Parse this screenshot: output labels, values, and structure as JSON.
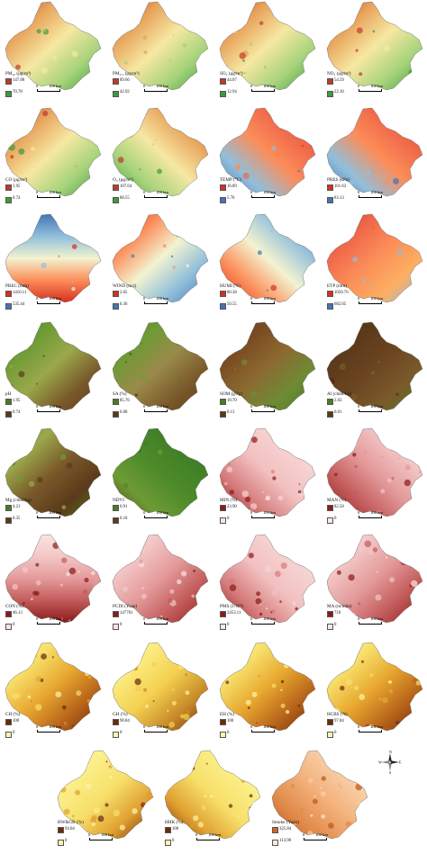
{
  "scale_zero": "0",
  "scale_distance": "100 km",
  "panels": [
    {
      "label": "PM₁₀ (μg/m³)",
      "max": "147.88",
      "min": "70.78",
      "ramp": [
        "#c0392b",
        "#e8a35b",
        "#f6e8a2",
        "#a7d37b",
        "#3f9a3c"
      ],
      "legend": [
        "#c0392b",
        "#3f9a3c"
      ]
    },
    {
      "label": "PM₂.₅ (μg/m³)",
      "max": "89.66",
      "min": "42.92",
      "ramp": [
        "#c0392b",
        "#e8a35b",
        "#f6e8a2",
        "#a7d37b",
        "#3f9a3c"
      ],
      "legend": [
        "#c0392b",
        "#3f9a3c"
      ]
    },
    {
      "label": "SO₂ (μg/m³)",
      "max": "44.07",
      "min": "12.94",
      "ramp": [
        "#c0392b",
        "#e8a35b",
        "#f6e8a2",
        "#a7d37b",
        "#3f9a3c"
      ],
      "legend": [
        "#c0392b",
        "#3f9a3c"
      ]
    },
    {
      "label": "NO₂ (μg/m³)",
      "max": "54.59",
      "min": "22.10",
      "ramp": [
        "#c0392b",
        "#e8a35b",
        "#f6e8a2",
        "#a7d37b",
        "#3f9a3c"
      ],
      "legend": [
        "#c0392b",
        "#3f9a3c"
      ]
    },
    {
      "label": "CO (μg/m³)",
      "max": "1.95",
      "min": "0.74",
      "ramp": [
        "#c0392b",
        "#e8a35b",
        "#f6e8a2",
        "#a7d37b",
        "#3f9a3c"
      ],
      "legend": [
        "#c0392b",
        "#3f9a3c"
      ]
    },
    {
      "label": "O₃ (μg/m³)",
      "max": "107.64",
      "min": "88.55",
      "ramp": [
        "#c0392b",
        "#e8a35b",
        "#f6e8a2",
        "#a7d37b",
        "#3f9a3c"
      ],
      "legend": [
        "#c0392b",
        "#3f9a3c"
      ]
    },
    {
      "label": "TEMP (°C)",
      "max": "16.89",
      "min": "5.76",
      "ramp": [
        "#d7301f",
        "#ef6548",
        "#fc8d59",
        "#91bfdb",
        "#4575b4"
      ],
      "legend": [
        "#d7301f",
        "#4575b4"
      ]
    },
    {
      "label": "PRES (kPa)",
      "max": "101.63",
      "min": "83.13",
      "ramp": [
        "#d7301f",
        "#ef6548",
        "#fc8d59",
        "#91bfdb",
        "#4575b4"
      ],
      "legend": [
        "#d7301f",
        "#4575b4"
      ]
    },
    {
      "label": "PREC (mm)",
      "max": "1410.11",
      "min": "535.44",
      "ramp": [
        "#4575b4",
        "#91bfdb",
        "#f3f3d0",
        "#fc8d59",
        "#d7301f"
      ],
      "legend": [
        "#d7301f",
        "#4575b4"
      ]
    },
    {
      "label": "WIND (m/s)",
      "max": "2.65",
      "min": "0.36",
      "ramp": [
        "#d7301f",
        "#fc8d59",
        "#f3f3d0",
        "#91bfdb",
        "#4575b4"
      ],
      "legend": [
        "#d7301f",
        "#4575b4"
      ]
    },
    {
      "label": "HUMI (%)",
      "max": "80.38",
      "min": "50.55",
      "ramp": [
        "#4575b4",
        "#91bfdb",
        "#f3f3d0",
        "#fc8d59",
        "#d7301f"
      ],
      "legend": [
        "#d7301f",
        "#4575b4"
      ]
    },
    {
      "label": "ETP (mm)",
      "max": "1058.76",
      "min": "682.05",
      "ramp": [
        "#d7301f",
        "#ef6548",
        "#fc8d59",
        "#fdae61",
        "#91bfdb"
      ],
      "legend": [
        "#d7301f",
        "#4575b4"
      ]
    },
    {
      "label": "pH",
      "max": "1.95",
      "min": "0.74",
      "ramp": [
        "#4d7a24",
        "#6d9b34",
        "#9aa84a",
        "#7a5a2a",
        "#5b3a1a"
      ],
      "legend": [
        "#4d7a24",
        "#5b3a1a"
      ]
    },
    {
      "label": "SA (%)",
      "max": "85.76",
      "min": "6.08",
      "ramp": [
        "#4d7a24",
        "#6d9b34",
        "#9a8a4a",
        "#7a5a2a",
        "#5b3a1a"
      ],
      "legend": [
        "#4d7a24",
        "#5b3a1a"
      ]
    },
    {
      "label": "SOM (g/kg)",
      "max": "10.70",
      "min": "0.13",
      "ramp": [
        "#5b3a1a",
        "#7a4a22",
        "#8c6a30",
        "#6d8b34",
        "#4d7a24"
      ],
      "legend": [
        "#4d7a24",
        "#5b3a1a"
      ]
    },
    {
      "label": "Al (cmol/kg)",
      "max": "2.63",
      "min": "0.01",
      "ramp": [
        "#4a2a12",
        "#5b3a1a",
        "#6b4420",
        "#7a5a2a",
        "#4d7a24"
      ],
      "legend": [
        "#4d7a24",
        "#5b3a1a"
      ]
    },
    {
      "label": "Mg (cmol/kg)",
      "max": "4.21",
      "min": "0.35",
      "ramp": [
        "#6d9b34",
        "#9aa84a",
        "#7a5a2a",
        "#5b3a1a",
        "#4d7a24"
      ],
      "legend": [
        "#4d7a24",
        "#5b3a1a"
      ]
    },
    {
      "label": "NDVI",
      "max": "0.91",
      "min": "0.18",
      "ramp": [
        "#2e6b1f",
        "#3f7f26",
        "#4d8a2a",
        "#6d9b34",
        "#5b3a1a"
      ],
      "legend": [
        "#4d7a24",
        "#5b3a1a"
      ]
    },
    {
      "label": "MIN (%)",
      "max": "23.90",
      "min": "0",
      "ramp": [
        "#fbe4e4",
        "#f7d3d3",
        "#f2c0c0",
        "#d67b7b",
        "#8b1a1a"
      ],
      "legend": [
        "#8b1a1a",
        "#fbe4e4"
      ]
    },
    {
      "label": "MAN (%)",
      "max": "82.58",
      "min": "0",
      "ramp": [
        "#fbe4e4",
        "#f3c6c6",
        "#e49a9a",
        "#c25a5a",
        "#8b1a1a"
      ],
      "legend": [
        "#8b1a1a",
        "#fbe4e4"
      ]
    },
    {
      "label": "CON (%)",
      "max": "46.13",
      "min": "0",
      "ramp": [
        "#fbe4e4",
        "#f3c6c6",
        "#e49a9a",
        "#c25a5a",
        "#8b1a1a"
      ],
      "legend": [
        "#8b1a1a",
        "#fbe4e4"
      ]
    },
    {
      "label": "PCDI (Yuan)",
      "max": "147781",
      "min": "0",
      "ramp": [
        "#fbe4e4",
        "#f3c6c6",
        "#e49a9a",
        "#c25a5a",
        "#8b1a1a"
      ],
      "legend": [
        "#8b1a1a",
        "#fbe4e4"
      ]
    },
    {
      "label": "PMS (1/10⁴)",
      "max": "2453.11",
      "min": "0",
      "ramp": [
        "#fbe4e4",
        "#f7d3d3",
        "#f2c0c0",
        "#d67b7b",
        "#8b1a1a"
      ],
      "legend": [
        "#8b1a1a",
        "#fbe4e4"
      ]
    },
    {
      "label": "MA (m/mile)",
      "max": "718",
      "min": "0",
      "ramp": [
        "#fbe4e4",
        "#f3c6c6",
        "#e49a9a",
        "#c25a5a",
        "#8b1a1a"
      ],
      "legend": [
        "#8b1a1a",
        "#fbe4e4"
      ]
    },
    {
      "label": "CH (%)",
      "max": "100",
      "min": "0",
      "ramp": [
        "#fdf5a8",
        "#f7e06a",
        "#e8a830",
        "#b8641a",
        "#6b2a0a"
      ],
      "legend": [
        "#6b2a0a",
        "#fdf5a8"
      ]
    },
    {
      "label": "GH (%)",
      "max": "98.84",
      "min": "0",
      "ramp": [
        "#fdf5a8",
        "#fbeb7e",
        "#f3d050",
        "#c88a28",
        "#6b2a0a"
      ],
      "legend": [
        "#6b2a0a",
        "#fdf5a8"
      ]
    },
    {
      "label": "EH (%)",
      "max": "100",
      "min": "0",
      "ramp": [
        "#fdf5a8",
        "#f7e06a",
        "#e8a830",
        "#b8641a",
        "#6b2a0a"
      ],
      "legend": [
        "#6b2a0a",
        "#fdf5a8"
      ]
    },
    {
      "label": "HCBS (%)",
      "max": "97.84",
      "min": "0",
      "ramp": [
        "#fdf5a8",
        "#f7e06a",
        "#e8a830",
        "#b8641a",
        "#6b2a0a"
      ],
      "legend": [
        "#6b2a0a",
        "#fdf5a8"
      ]
    },
    {
      "label": "BW&GB (%)",
      "max": "94.04",
      "min": "0",
      "ramp": [
        "#fdf5a8",
        "#fbef8a",
        "#f7e06a",
        "#e0a030",
        "#6b2a0a"
      ],
      "legend": [
        "#6b2a0a",
        "#fdf5a8"
      ]
    },
    {
      "label": "HHK (%)",
      "max": "100",
      "min": "0",
      "ramp": [
        "#fdf5a8",
        "#fbef8a",
        "#f7e06a",
        "#e0a030",
        "#6b2a0a"
      ],
      "legend": [
        "#6b2a0a",
        "#fdf5a8"
      ]
    },
    {
      "label": "Smoke (Yuan)",
      "max": "325.84",
      "min": "113.98",
      "ramp": [
        "#fdebd8",
        "#f9cfa8",
        "#f3b07a",
        "#e08a4a",
        "#b8561a"
      ],
      "legend": [
        "#d2641e",
        "#fdebd8"
      ]
    }
  ],
  "north_arrow": {
    "n": "N",
    "s": "S",
    "e": "E",
    "w": "W"
  }
}
